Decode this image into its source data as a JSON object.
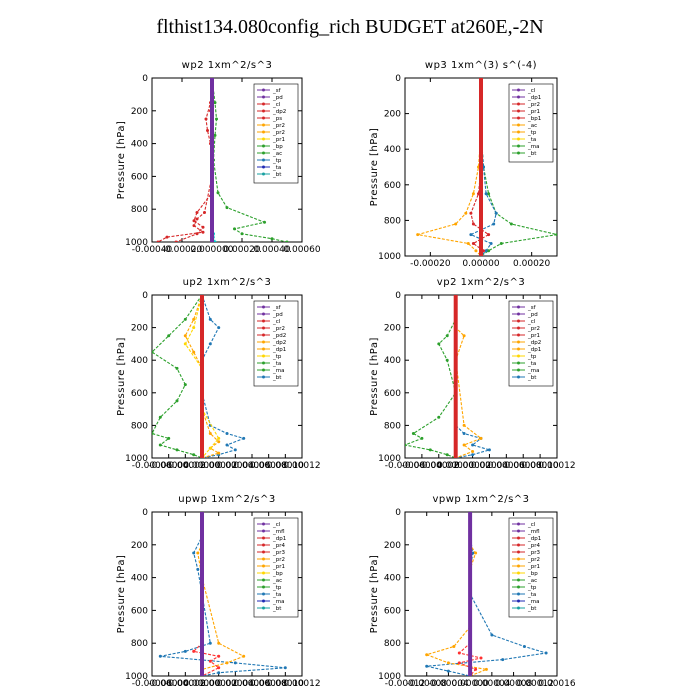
{
  "title": "flthist134.080config_rich  BUDGET at260E,-2N",
  "colors": {
    "sf": "#7030a0",
    "pd": "#7030a0",
    "cl": "#d62728",
    "dp2": "#d62728",
    "ps": "#d62728",
    "pr2": "#ffa500",
    "pr1": "#ffd700",
    "bp": "#2ca02c",
    "ac": "#2ca02c",
    "tp": "#1f77b4",
    "ta": "#1f2ab4",
    "ma": "#17a0a0",
    "bt": "#00cccc",
    "dp1": "#ff3030",
    "mfl": "#7030a0",
    "pr4": "#ff3030",
    "pr3": "#ff3030",
    "dp2b": "#ffd700"
  },
  "chart_data": [
    {
      "type": "line",
      "title": "wp2   1xm^2/s^3",
      "ylabel": "Pressure [hPa]",
      "ylim": [
        0,
        1000
      ],
      "xlim": [
        -0.0004,
        0.0006
      ],
      "xticks": [
        -0.0004,
        -0.0002,
        0.0,
        0.0002,
        0.0004,
        0.0006
      ],
      "xtick_labels": [
        "-0.00040",
        "-0.00020",
        "0.000000",
        "0.00020",
        "0.00040",
        "0.00060"
      ],
      "yticks": [
        0,
        200,
        400,
        600,
        800,
        1000
      ],
      "legend": [
        "_sf",
        "_pd",
        "_cl",
        "_dp2",
        "_ps",
        "_pr2",
        "_pr2",
        "_pr1",
        "_bp",
        "_ac",
        "_tp",
        "_ta",
        "_bt"
      ],
      "series": [
        {
          "name": "_cl",
          "color": "#d62728",
          "x": [
            0,
            -1e-05,
            -4e-05,
            -3e-05,
            -1e-05,
            0,
            -5e-05,
            -0.0001,
            -0.00012,
            -6e-05,
            -0.0003,
            -0.00036
          ],
          "y": [
            0,
            150,
            250,
            320,
            400,
            600,
            820,
            860,
            900,
            940,
            970,
            1000
          ]
        },
        {
          "name": "_ac",
          "color": "#2ca02c",
          "x": [
            0,
            2e-05,
            3e-05,
            2e-05,
            1e-05,
            4e-05,
            0.0001,
            0.00035,
            0.00015,
            0.0002,
            0.0004,
            0.0005
          ],
          "y": [
            0,
            150,
            250,
            350,
            500,
            700,
            790,
            880,
            920,
            950,
            980,
            1000
          ]
        },
        {
          "name": "_dp2",
          "color": "#d62728",
          "x": [
            0,
            -1e-05,
            0,
            0,
            -0.0001,
            -0.00012,
            -6e-05,
            -0.0001,
            -0.00024
          ],
          "y": [
            0,
            200,
            400,
            700,
            820,
            870,
            910,
            950,
            1000
          ]
        },
        {
          "name": "_bt",
          "color": "#00cccc",
          "x": [
            0,
            0,
            0,
            0,
            0,
            0,
            0,
            1e-05,
            2e-05
          ],
          "y": [
            0,
            200,
            400,
            600,
            800,
            850,
            900,
            950,
            1000
          ]
        },
        {
          "name": "_sf",
          "color": "#7030a0",
          "x": [
            0,
            0,
            0,
            0,
            0,
            0
          ],
          "y": [
            0,
            200,
            400,
            600,
            800,
            1000
          ]
        }
      ]
    },
    {
      "type": "line",
      "title": "wp3   1xm^(3) s^(-4)",
      "ylabel": "Pressure [hPa]",
      "ylim": [
        0,
        1000
      ],
      "xlim": [
        -0.0003,
        0.0003
      ],
      "xticks": [
        -0.0002,
        0.0,
        0.0002
      ],
      "xtick_labels": [
        "-0.00020",
        "0.00000",
        "0.00020"
      ],
      "yticks": [
        0,
        200,
        400,
        600,
        800,
        1000
      ],
      "legend": [
        "_cl",
        "_dp1",
        "_pr2",
        "_pr1",
        "_bp1",
        "_ac",
        "_tp",
        "_ta",
        "_ma",
        "_bt"
      ],
      "series": [
        {
          "name": "_pr2",
          "color": "#ffa500",
          "x": [
            0,
            0,
            -1e-05,
            -3e-05,
            -6e-05,
            -0.0001,
            -0.00025,
            -5e-05,
            -2e-05,
            0
          ],
          "y": [
            0,
            300,
            500,
            650,
            760,
            820,
            880,
            930,
            970,
            1000
          ]
        },
        {
          "name": "_ac",
          "color": "#2ca02c",
          "x": [
            0,
            0,
            1e-05,
            3e-05,
            6e-05,
            0.00012,
            0.0003,
            8e-05,
            3e-05,
            0
          ],
          "y": [
            0,
            300,
            500,
            650,
            760,
            820,
            880,
            930,
            970,
            1000
          ]
        },
        {
          "name": "_tp",
          "color": "#1f77b4",
          "x": [
            0,
            0,
            1e-05,
            2e-05,
            6e-05,
            5e-05,
            -4e-05,
            4e-05,
            2e-05,
            0
          ],
          "y": [
            0,
            300,
            500,
            650,
            760,
            820,
            880,
            930,
            970,
            1000
          ]
        },
        {
          "name": "_dp1",
          "color": "#d62728",
          "x": [
            0,
            0,
            0,
            -1e-05,
            -4e-05,
            -3e-05,
            3e-05,
            -3e-05,
            1e-05,
            0
          ],
          "y": [
            0,
            300,
            500,
            650,
            760,
            820,
            880,
            930,
            970,
            1000
          ]
        },
        {
          "name": "_cl",
          "color": "#d62728",
          "x": [
            0,
            0,
            0,
            0,
            0,
            0
          ],
          "y": [
            0,
            200,
            400,
            600,
            800,
            1000
          ]
        }
      ]
    },
    {
      "type": "line",
      "title": "up2   1xm^2/s^3",
      "ylabel": "Pressure [hPa]",
      "ylim": [
        0,
        1000
      ],
      "xlim": [
        -6e-05,
        0.00012
      ],
      "xticks": [
        -6e-05,
        -4e-05,
        -2e-05,
        0.0,
        2e-05,
        4e-05,
        6e-05,
        8e-05,
        0.0001,
        0.00012
      ],
      "xtick_labels": [
        "-0.00006",
        "-0.00004",
        "-0.00002",
        "0.00000",
        "0.00002",
        "0.00004",
        "0.00006",
        "0.00008",
        "0.00010",
        "0.00012"
      ],
      "yticks": [
        0,
        200,
        400,
        600,
        800,
        1000
      ],
      "legend": [
        "_sf",
        "_pd",
        "_cl",
        "_pr2",
        "_pd2",
        "_dp2",
        "_dp1",
        "_tp",
        "_ta",
        "_ma",
        "_bt"
      ],
      "series": [
        {
          "name": "_bp",
          "color": "#2ca02c",
          "x": [
            0,
            -2e-05,
            -4e-05,
            -6e-05,
            -3e-05,
            -2e-05,
            -3e-05,
            -5e-05,
            -6e-05,
            -4e-05,
            -5e-05,
            -3e-05,
            -1e-05,
            0
          ],
          "y": [
            0,
            150,
            250,
            350,
            450,
            550,
            650,
            750,
            850,
            880,
            920,
            950,
            980,
            1000
          ]
        },
        {
          "name": "_tp",
          "color": "#1f77b4",
          "x": [
            0,
            1e-05,
            2e-05,
            1e-05,
            0,
            0,
            1e-05,
            3e-05,
            5e-05,
            3e-05,
            4e-05,
            2e-05,
            0
          ],
          "y": [
            0,
            150,
            200,
            300,
            400,
            600,
            800,
            850,
            880,
            920,
            950,
            980,
            1000
          ]
        },
        {
          "name": "_pr2",
          "color": "#ffa500",
          "x": [
            0,
            -1e-05,
            -2e-05,
            -1e-05,
            0,
            0,
            1e-05,
            2e-05,
            1e-05,
            2e-05,
            0
          ],
          "y": [
            0,
            150,
            250,
            350,
            450,
            700,
            850,
            900,
            940,
            970,
            1000
          ]
        },
        {
          "name": "_pr1",
          "color": "#ffd700",
          "x": [
            0,
            -1e-05,
            -2e-05,
            0,
            0,
            2e-05,
            1e-05,
            0
          ],
          "y": [
            0,
            200,
            300,
            450,
            700,
            880,
            940,
            1000
          ]
        },
        {
          "name": "_cl",
          "color": "#d62728",
          "x": [
            0,
            0,
            0,
            0,
            0,
            0
          ],
          "y": [
            0,
            200,
            400,
            600,
            800,
            1000
          ]
        }
      ]
    },
    {
      "type": "line",
      "title": "vp2   1xm^2/s^3",
      "ylabel": "Pressure [hPa]",
      "ylim": [
        0,
        1000
      ],
      "xlim": [
        -6e-05,
        0.00012
      ],
      "xticks": [
        -6e-05,
        -4e-05,
        -2e-05,
        0.0,
        2e-05,
        4e-05,
        6e-05,
        8e-05,
        0.0001,
        0.00012
      ],
      "xtick_labels": [
        "-0.00006",
        "-0.00004",
        "-0.00002",
        "0.00000",
        "0.00002",
        "0.00004",
        "0.00006",
        "0.00008",
        "0.00010",
        "0.00012"
      ],
      "yticks": [
        0,
        200,
        400,
        600,
        800,
        1000
      ],
      "legend": [
        "_sf",
        "_pd",
        "_cl",
        "_pr2",
        "_pr1",
        "_dp2",
        "_dp1",
        "_tp",
        "_ta",
        "_ma",
        "_bt"
      ],
      "series": [
        {
          "name": "_bp",
          "color": "#2ca02c",
          "x": [
            0,
            0,
            -1e-05,
            -2e-05,
            -1e-05,
            0,
            -2e-05,
            -5e-05,
            -4e-05,
            -6e-05,
            -3e-05,
            -1e-05,
            0
          ],
          "y": [
            0,
            150,
            250,
            300,
            400,
            600,
            750,
            850,
            880,
            920,
            950,
            980,
            1000
          ]
        },
        {
          "name": "_tp",
          "color": "#1f77b4",
          "x": [
            0,
            0,
            0,
            0,
            0,
            1e-05,
            3e-05,
            2e-05,
            4e-05,
            2e-05,
            0
          ],
          "y": [
            0,
            200,
            400,
            600,
            800,
            850,
            880,
            920,
            950,
            980,
            1000
          ]
        },
        {
          "name": "_pr2",
          "color": "#ffa500",
          "x": [
            0,
            0,
            1e-05,
            0,
            1e-05,
            3e-05,
            1e-05,
            2e-05,
            0
          ],
          "y": [
            0,
            200,
            250,
            400,
            800,
            880,
            920,
            960,
            1000
          ]
        },
        {
          "name": "_cl",
          "color": "#d62728",
          "x": [
            0,
            0,
            0,
            0,
            0,
            0
          ],
          "y": [
            0,
            200,
            400,
            600,
            800,
            1000
          ]
        }
      ]
    },
    {
      "type": "line",
      "title": "upwp   1xm^2/s^3",
      "ylabel": "Pressure [hPa]",
      "ylim": [
        0,
        1000
      ],
      "xlim": [
        -6e-05,
        0.00012
      ],
      "xticks": [
        -6e-05,
        -4e-05,
        -2e-05,
        0.0,
        2e-05,
        4e-05,
        6e-05,
        8e-05,
        0.0001,
        0.00012
      ],
      "xtick_labels": [
        "-0.00006",
        "-0.00004",
        "-0.00002",
        "0.00000",
        "0.00002",
        "0.00004",
        "0.00006",
        "0.00008",
        "0.00010",
        "0.00012"
      ],
      "yticks": [
        0,
        200,
        400,
        600,
        800,
        1000
      ],
      "legend": [
        "_cl",
        "_mfl",
        "_dp1",
        "_pr4",
        "_pr3",
        "_pr2",
        "_pr1",
        "_bp",
        "_ac",
        "_tp",
        "_ta",
        "_ma",
        "_bt"
      ],
      "series": [
        {
          "name": "_tp",
          "color": "#1f77b4",
          "x": [
            0,
            0,
            -1e-05,
            -5e-06,
            0,
            1e-05,
            -2e-05,
            -5e-05,
            4e-05,
            0.0001,
            2e-05,
            0
          ],
          "y": [
            0,
            150,
            250,
            350,
            500,
            800,
            850,
            880,
            920,
            950,
            980,
            1000
          ]
        },
        {
          "name": "_pr2",
          "color": "#ffa500",
          "x": [
            0,
            0,
            -5e-06,
            0,
            2e-05,
            5e-05,
            3e-05,
            0,
            0
          ],
          "y": [
            0,
            200,
            250,
            400,
            800,
            880,
            920,
            960,
            1000
          ]
        },
        {
          "name": "_dp1",
          "color": "#ff3030",
          "x": [
            0,
            0,
            0,
            -1e-05,
            2e-05,
            1e-05,
            2e-05,
            0
          ],
          "y": [
            0,
            400,
            800,
            850,
            880,
            910,
            950,
            1000
          ]
        },
        {
          "name": "_mfl",
          "color": "#7030a0",
          "x": [
            0,
            0,
            0,
            0,
            0,
            0
          ],
          "y": [
            0,
            200,
            400,
            600,
            800,
            1000
          ]
        }
      ]
    },
    {
      "type": "line",
      "title": "vpwp   1xm^2/s^3",
      "ylabel": "Pressure [hPa]",
      "ylim": [
        0,
        1000
      ],
      "xlim": [
        -0.00012,
        0.00016
      ],
      "xticks": [
        -0.00012,
        -8e-05,
        -4e-05,
        0.0,
        4e-05,
        8e-05,
        0.00012,
        0.00016
      ],
      "xtick_labels": [
        "-0.00012",
        "-0.00008",
        "-0.00004",
        "0.00000",
        "0.00004",
        "0.00008",
        "0.00012",
        "0.00016"
      ],
      "yticks": [
        0,
        200,
        400,
        600,
        800,
        1000
      ],
      "legend": [
        "_cl",
        "_mfl",
        "_dp1",
        "_pr4",
        "_pr3",
        "_pr2",
        "_pr1",
        "_bp",
        "_ac",
        "_tp",
        "_ta",
        "_ma",
        "_bt"
      ],
      "series": [
        {
          "name": "_tp",
          "color": "#1f77b4",
          "x": [
            0,
            0,
            5e-06,
            0,
            0,
            4e-05,
            0.0001,
            0.00014,
            6e-05,
            -8e-05,
            -4e-05,
            0
          ],
          "y": [
            0,
            150,
            250,
            350,
            500,
            750,
            820,
            860,
            900,
            940,
            970,
            1000
          ]
        },
        {
          "name": "_pr2",
          "color": "#ffa500",
          "x": [
            0,
            0,
            1e-05,
            0,
            0,
            -3e-05,
            -8e-05,
            -4e-05,
            3e-05,
            0
          ],
          "y": [
            0,
            200,
            250,
            350,
            700,
            820,
            870,
            920,
            960,
            1000
          ]
        },
        {
          "name": "_dp1",
          "color": "#ff3030",
          "x": [
            0,
            0,
            0,
            -2e-05,
            2e-05,
            -2e-05,
            1e-05,
            0
          ],
          "y": [
            0,
            400,
            800,
            860,
            890,
            920,
            960,
            1000
          ]
        },
        {
          "name": "_mfl",
          "color": "#7030a0",
          "x": [
            0,
            0,
            0,
            0,
            0,
            0
          ],
          "y": [
            0,
            200,
            400,
            600,
            800,
            1000
          ]
        }
      ]
    }
  ]
}
